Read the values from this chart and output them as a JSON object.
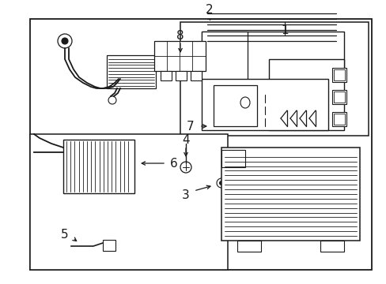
{
  "bg_color": "#ffffff",
  "lc": "#1a1a1a",
  "figsize": [
    4.89,
    3.6
  ],
  "dpi": 100
}
